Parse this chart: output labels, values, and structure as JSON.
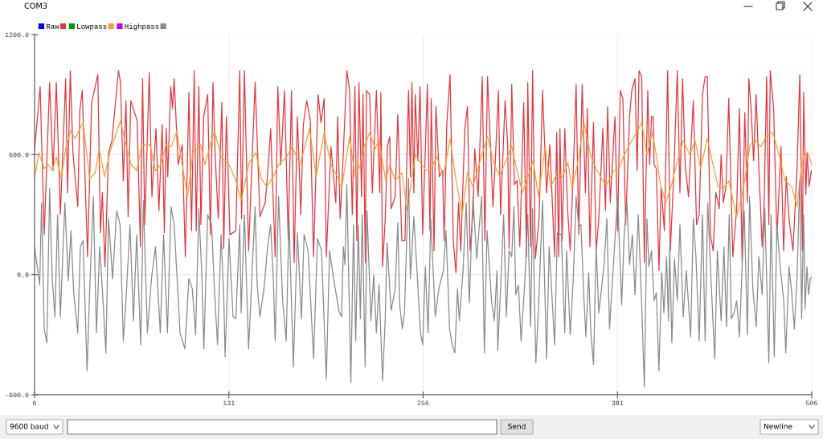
{
  "chart_data": {
    "type": "line",
    "title": "COM3",
    "xlim": [
      6,
      506
    ],
    "ylim": [
      -600,
      1200
    ],
    "xticks": [
      6,
      131,
      256,
      381,
      506
    ],
    "yticks": [
      {
        "value": -600,
        "label": "-600.0"
      },
      {
        "value": 0,
        "label": "0.0"
      },
      {
        "value": 600,
        "label": "600.0"
      },
      {
        "value": 1200,
        "label": "1200.0"
      }
    ],
    "grid": true,
    "legend": "top left",
    "line_style": "solid",
    "annotations": [
      "9600 baud",
      "Send",
      "Newline"
    ],
    "series": [
      {
        "name": "Raw",
        "color": "#0000ff"
      },
      {
        "color": "#e2383f",
        "x": [
          6.0,
          9.6,
          12.2,
          15.7,
          17.9,
          20.0,
          22.6,
          26.0,
          27.2,
          29.0,
          30.7,
          33.8,
          35.1,
          36.7,
          40.1,
          42.7,
          46.7,
          48.4,
          49.6,
          51.3,
          53.6,
          55.8,
          60.0,
          61.3,
          63.1,
          64.8,
          66.2,
          67.9,
          72.0,
          74.1,
          75.5,
          76.9,
          79.8,
          81.5,
          84.1,
          86.0,
          88.1,
          89.5,
          90.7,
          91.7,
          93.6,
          94.8,
          95.8,
          98.4,
          101.0,
          103.0,
          105.3,
          107.0,
          108.7,
          110.0,
          111.7,
          113.0,
          114.8,
          117.4,
          119.1,
          120.8,
          122.2,
          124.2,
          126.5,
          127.7,
          129.4,
          131.7,
          135.5,
          138.0,
          139.2,
          141.0,
          143.7,
          147.9,
          151.0,
          154.4,
          156.1,
          157.9,
          160.8,
          162.5,
          164.4,
          166.8,
          169.2,
          171.3,
          173.0,
          175.1,
          177.3,
          178.9,
          181.1,
          183.4,
          185.5,
          188.4,
          190.3,
          192.3,
          193.7,
          196.7,
          199.8,
          201.0,
          202.6,
          204.3,
          206.9,
          208.7,
          210.4,
          212.1,
          213.3,
          214.7,
          216.4,
          217.3,
          218.8,
          219.5,
          221.6,
          223.3,
          225.9,
          228.1,
          228.8,
          229.9,
          231.6,
          233.0,
          234.5,
          235.4,
          238.0,
          239.7,
          242.3,
          244.3,
          246.6,
          247.8,
          248.8,
          250.0,
          250.9,
          252.6,
          254.0,
          255.7,
          258.7,
          260.4,
          261.2,
          263.0,
          264.2,
          266.4,
          268.5,
          269.5,
          271.2,
          273.3,
          275.4,
          277.1,
          278.8,
          280.2,
          282.8,
          284.5,
          286.2,
          288.0,
          289.2,
          291.4,
          294.0,
          295.7,
          297.4,
          300.0,
          300.9,
          302.6,
          304.4,
          305.8,
          308.7,
          310.4,
          311.3,
          313.0,
          314.7,
          316.4,
          318.2,
          320.7,
          322.5,
          323.3,
          325.1,
          326.4,
          328.2,
          330.6,
          332.8,
          335.4,
          337.5,
          340.6,
          341.9,
          343.2,
          344.0,
          345.4,
          347.1,
          348.9,
          350.6,
          352.6,
          354.4,
          356.1,
          358.3,
          360.4,
          361.6,
          363.3,
          365.6,
          367.3,
          369.0,
          371.6,
          373.3,
          374.7,
          376.4,
          379.4,
          381.1,
          382.8,
          384.5,
          386.3,
          388.8,
          390.2,
          392.3,
          393.7,
          394.9,
          396.6,
          398.3,
          400.5,
          401.7,
          402.9,
          404.0,
          404.6,
          406.0,
          407.7,
          409.1,
          411.2,
          413.3,
          415.0,
          417.2,
          419.5,
          421.2,
          422.9,
          424.6,
          426.7,
          429.8,
          431.9,
          433.6,
          435.7,
          437.4,
          438.8,
          440.8,
          442.6,
          444.3,
          446.5,
          447.7,
          449.1,
          450.8,
          452.6,
          455.2,
          457.7,
          459.5,
          461.2,
          462.9,
          464.6,
          465.5,
          466.9,
          468.6,
          470.2,
          472.2,
          474.1,
          475.3,
          477.0,
          478.4,
          479.3,
          481.5,
          483.6,
          486.2,
          487.9,
          489.6,
          491.4,
          493.9,
          496.5,
          498.3,
          500.0,
          500.8,
          502.2,
          503.0,
          504.3,
          505.7,
          506.0
        ],
        "values": [
          620,
          940,
          200,
          960,
          520,
          960,
          300,
          980,
          410,
          1020,
          610,
          340,
          820,
          920,
          90,
          860,
          1000,
          210,
          410,
          40,
          610,
          670,
          1020,
          960,
          470,
          870,
          290,
          870,
          770,
          140,
          980,
          250,
          1010,
          390,
          730,
          320,
          750,
          210,
          730,
          490,
          940,
          830,
          980,
          550,
          650,
          90,
          910,
          220,
          1020,
          220,
          940,
          250,
          790,
          900,
          200,
          960,
          590,
          280,
          860,
          130,
          790,
          200,
          220,
          1020,
          280,
          1020,
          120,
          960,
          290,
          360,
          520,
          730,
          90,
          940,
          550,
          920,
          180,
          920,
          60,
          790,
          300,
          750,
          870,
          770,
          90,
          900,
          760,
          880,
          90,
          640,
          360,
          790,
          280,
          550,
          1020,
          920,
          300,
          940,
          170,
          960,
          390,
          900,
          60,
          920,
          900,
          410,
          920,
          410,
          910,
          40,
          280,
          640,
          690,
          330,
          390,
          800,
          170,
          170,
          920,
          490,
          960,
          410,
          900,
          570,
          940,
          200,
          950,
          220,
          880,
          120,
          840,
          490,
          520,
          170,
          750,
          1000,
          170,
          10,
          360,
          120,
          730,
          840,
          120,
          300,
          630,
          390,
          990,
          170,
          990,
          520,
          340,
          600,
          920,
          300,
          870,
          650,
          130,
          950,
          450,
          470,
          140,
          860,
          90,
          960,
          140,
          1020,
          80,
          280,
          920,
          410,
          650,
          90,
          710,
          90,
          730,
          170,
          730,
          330,
          120,
          520,
          950,
          200,
          950,
          410,
          830,
          140,
          760,
          120,
          280,
          730,
          320,
          840,
          360,
          790,
          220,
          920,
          880,
          250,
          790,
          920,
          980,
          520,
          1020,
          990,
          60,
          920,
          550,
          790,
          790,
          550,
          530,
          20,
          440,
          220,
          1020,
          120,
          490,
          1020,
          410,
          980,
          550,
          390,
          870,
          250,
          300,
          900,
          990,
          990,
          200,
          120,
          410,
          330,
          600,
          360,
          440,
          880,
          90,
          330,
          830,
          60,
          810,
          360,
          980,
          840,
          570,
          900,
          490,
          140,
          330,
          990,
          250,
          1020,
          830,
          180,
          640,
          120,
          490,
          280,
          120,
          520,
          1000,
          120,
          910,
          400,
          610,
          440,
          520,
          510
        ]
      },
      {
        "name": "Lowpass",
        "color": "#009900"
      },
      {
        "color": "#f4a233",
        "x": [
          6.0,
          8.8,
          12.2,
          14.8,
          17.4,
          20.0,
          23.1,
          26.0,
          29.4,
          32.0,
          37.2,
          41.5,
          45.0,
          47.6,
          51.0,
          54.4,
          61.3,
          64.8,
          68.2,
          71.7,
          75.1,
          80.3,
          83.8,
          87.2,
          90.7,
          94.1,
          97.5,
          101.0,
          104.4,
          107.9,
          113.0,
          115.6,
          121.7,
          126.0,
          131.1,
          135.5,
          138.9,
          144.1,
          148.4,
          151.8,
          155.3,
          159.6,
          163.0,
          168.2,
          171.7,
          176.8,
          182.9,
          187.2,
          192.3,
          196.7,
          200.9,
          203.5,
          208.7,
          212.1,
          215.6,
          218.1,
          221.6,
          225.0,
          227.6,
          231.9,
          234.5,
          238.0,
          242.3,
          245.7,
          250.9,
          254.3,
          257.8,
          261.2,
          264.7,
          269.0,
          273.3,
          276.8,
          281.1,
          284.5,
          288.0,
          292.3,
          297.4,
          301.8,
          305.2,
          308.7,
          313.0,
          316.4,
          319.9,
          323.3,
          326.8,
          330.2,
          334.5,
          338.0,
          342.3,
          345.7,
          349.2,
          351.8,
          355.2,
          359.5,
          363.9,
          367.3,
          371.6,
          374.2,
          378.5,
          382.0,
          385.4,
          388.8,
          393.2,
          396.6,
          400.0,
          403.4,
          406.0,
          408.6,
          412.1,
          415.5,
          419.0,
          423.3,
          427.6,
          431.0,
          434.5,
          438.8,
          442.2,
          445.7,
          449.1,
          452.6,
          457.7,
          462.0,
          466.4,
          469.8,
          473.3,
          476.7,
          481.0,
          485.3,
          488.8,
          493.1,
          496.5,
          499.1,
          500.8,
          503.4,
          506.0
        ],
        "values": [
          480,
          610,
          530,
          550,
          520,
          590,
          480,
          630,
          720,
          680,
          760,
          480,
          510,
          630,
          490,
          610,
          770,
          650,
          550,
          520,
          650,
          650,
          520,
          550,
          650,
          640,
          720,
          550,
          390,
          610,
          650,
          550,
          720,
          590,
          550,
          470,
          370,
          560,
          610,
          480,
          440,
          490,
          550,
          590,
          640,
          550,
          730,
          490,
          710,
          550,
          490,
          430,
          690,
          490,
          550,
          640,
          710,
          630,
          670,
          470,
          550,
          470,
          510,
          320,
          600,
          560,
          520,
          530,
          590,
          490,
          680,
          490,
          300,
          510,
          440,
          560,
          690,
          550,
          490,
          560,
          640,
          520,
          410,
          490,
          570,
          390,
          640,
          440,
          510,
          490,
          560,
          430,
          550,
          760,
          590,
          530,
          470,
          450,
          520,
          530,
          600,
          650,
          710,
          760,
          600,
          710,
          600,
          450,
          360,
          440,
          550,
          670,
          600,
          670,
          530,
          680,
          560,
          440,
          430,
          470,
          290,
          430,
          650,
          670,
          640,
          690,
          710,
          590,
          470,
          440,
          340,
          520,
          600,
          610,
          550
        ]
      },
      {
        "name": "Highpass",
        "color": "#cc00cc"
      },
      {
        "color": "#8a8a8a",
        "x": [
          6.0,
          9.3,
          10.5,
          12.2,
          13.9,
          15.7,
          17.4,
          19.1,
          20.8,
          22.6,
          25.5,
          27.7,
          29.4,
          31.2,
          33.8,
          35.5,
          37.2,
          39.8,
          41.5,
          43.8,
          45.8,
          47.9,
          49.6,
          51.9,
          53.6,
          56.2,
          58.8,
          61.0,
          63.1,
          64.8,
          67.4,
          69.6,
          71.7,
          74.3,
          76.0,
          78.6,
          81.2,
          83.8,
          86.9,
          89.0,
          91.5,
          93.8,
          95.8,
          99.6,
          102.7,
          105.3,
          107.5,
          109.6,
          111.7,
          113.7,
          114.9,
          117.4,
          119.9,
          121.7,
          123.7,
          126.0,
          127.7,
          128.6,
          131.1,
          133.7,
          135.5,
          138.0,
          138.9,
          141.0,
          143.7,
          147.9,
          149.2,
          151.0,
          153.6,
          155.8,
          157.9,
          159.6,
          160.8,
          163.0,
          165.6,
          167.9,
          169.7,
          172.5,
          175.1,
          177.7,
          179.4,
          182.0,
          185.5,
          188.0,
          190.6,
          193.7,
          195.8,
          198.4,
          201.8,
          203.5,
          204.7,
          205.7,
          206.9,
          209.5,
          211.2,
          212.6,
          214.3,
          215.6,
          216.8,
          218.7,
          219.9,
          222.4,
          224.2,
          225.9,
          227.6,
          229.9,
          231.6,
          232.8,
          235.4,
          238.0,
          239.7,
          240.9,
          242.6,
          244.0,
          246.6,
          247.8,
          250.0,
          251.8,
          254.3,
          255.7,
          257.4,
          259.2,
          260.9,
          263.8,
          266.1,
          269.0,
          270.7,
          273.0,
          274.7,
          276.4,
          278.1,
          279.3,
          281.6,
          283.7,
          285.7,
          288.0,
          290.5,
          293.6,
          295.4,
          297.1,
          300.1,
          301.8,
          303.5,
          304.0,
          306.1,
          307.8,
          309.5,
          311.3,
          313.0,
          314.4,
          315.6,
          317.3,
          319.0,
          321.3,
          323.3,
          325.1,
          326.4,
          328.5,
          330.2,
          332.8,
          335.4,
          337.1,
          340.6,
          342.3,
          344.9,
          347.1,
          348.3,
          350.6,
          352.6,
          354.4,
          356.1,
          357.5,
          359.5,
          360.7,
          362.5,
          363.9,
          365.6,
          367.3,
          369.0,
          370.2,
          372.5,
          374.2,
          375.9,
          378.5,
          381.1,
          383.7,
          385.4,
          387.1,
          388.8,
          390.6,
          392.3,
          394.4,
          396.6,
          398.3,
          400.0,
          401.2,
          402.9,
          404.6,
          406.0,
          407.7,
          409.5,
          410.9,
          412.6,
          413.8,
          414.6,
          416.0,
          417.7,
          419.5,
          421.2,
          423.3,
          425.3,
          428.1,
          429.8,
          431.5,
          433.6,
          435.7,
          437.4,
          439.1,
          441.4,
          443.6,
          445.3,
          447.7,
          449.5,
          451.2,
          452.9,
          454.3,
          456.0,
          457.7,
          459.5,
          462.6,
          464.6,
          466.0,
          468.1,
          470.3,
          472.0,
          474.1,
          475.8,
          478.4,
          479.8,
          481.9,
          483.6,
          485.7,
          488.0,
          489.3,
          491.4,
          493.1,
          494.8,
          496.5,
          498.3,
          499.5,
          500.8,
          501.7,
          502.9,
          504.0,
          505.1,
          506.0
        ],
        "values": [
          140,
          -50,
          360,
          -270,
          -340,
          430,
          -20,
          -210,
          300,
          -210,
          360,
          -30,
          220,
          -90,
          -290,
          140,
          170,
          -480,
          -70,
          390,
          -290,
          140,
          -70,
          -390,
          280,
          -20,
          320,
          250,
          -330,
          -130,
          250,
          -230,
          200,
          -350,
          370,
          -290,
          -20,
          140,
          -290,
          200,
          -290,
          340,
          250,
          -290,
          -370,
          -20,
          -70,
          -300,
          330,
          -20,
          -370,
          300,
          250,
          -70,
          -350,
          200,
          -110,
          -410,
          180,
          -210,
          -220,
          250,
          -190,
          300,
          -370,
          340,
          -50,
          -210,
          -70,
          130,
          250,
          -20,
          -330,
          390,
          -130,
          -330,
          280,
          -460,
          210,
          -220,
          200,
          120,
          -420,
          180,
          120,
          -520,
          120,
          -20,
          -180,
          -210,
          140,
          50,
          450,
          -540,
          250,
          -330,
          250,
          -220,
          300,
          -460,
          320,
          -230,
          0,
          -290,
          -50,
          -530,
          -220,
          160,
          -180,
          -70,
          260,
          -150,
          -270,
          -190,
          480,
          -20,
          290,
          50,
          -290,
          -350,
          40,
          -290,
          280,
          -210,
          -70,
          20,
          220,
          -270,
          -350,
          -390,
          -70,
          -230,
          10,
          360,
          -140,
          390,
          80,
          390,
          -390,
          220,
          -140,
          -230,
          20,
          -380,
          -20,
          300,
          -210,
          120,
          90,
          340,
          -100,
          -50,
          -330,
          -50,
          300,
          -260,
          330,
          -440,
          -170,
          370,
          -420,
          140,
          -350,
          210,
          200,
          -290,
          120,
          -300,
          -20,
          390,
          240,
          250,
          -130,
          -310,
          10,
          -290,
          -450,
          140,
          -190,
          -110,
          60,
          280,
          -270,
          60,
          390,
          -150,
          210,
          360,
          50,
          200,
          -100,
          300,
          -150,
          -560,
          280,
          40,
          120,
          -130,
          -90,
          -480,
          10,
          -190,
          90,
          -230,
          140,
          -340,
          80,
          -130,
          250,
          -210,
          20,
          -310,
          280,
          90,
          -330,
          300,
          -330,
          360,
          -60,
          -420,
          120,
          -230,
          140,
          -260,
          300,
          -220,
          -190,
          -130,
          -310,
          320,
          -300,
          390,
          -70,
          -260,
          90,
          -100,
          330,
          -440,
          300,
          -410,
          250,
          40,
          -130,
          -390,
          40,
          -90,
          -270,
          -20,
          470,
          -220,
          300,
          -170,
          40,
          -100,
          -20,
          -10
        ]
      }
    ]
  }
}
